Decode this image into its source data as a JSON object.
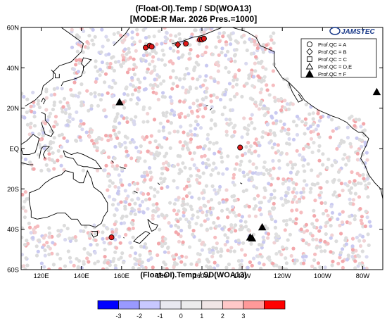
{
  "header": {
    "title_line1": "(Float-OI).Temp / SD(WOA13)",
    "title_line2": "[MODE:R Mar. 2026  Pres.=1000]"
  },
  "logo": {
    "text": "JAMSTEC"
  },
  "map": {
    "lon_range": [
      110,
      290
    ],
    "lat_range": [
      -60,
      60
    ],
    "lat_ticks": [
      {
        "value": 60,
        "label": "60N"
      },
      {
        "value": 40,
        "label": "40N"
      },
      {
        "value": 20,
        "label": "20N"
      },
      {
        "value": 0,
        "label": "EQ"
      },
      {
        "value": -20,
        "label": "20S"
      },
      {
        "value": -40,
        "label": "40S"
      },
      {
        "value": -60,
        "label": "60S"
      }
    ],
    "lon_ticks": [
      {
        "value": 120,
        "label": "120E"
      },
      {
        "value": 140,
        "label": "140E"
      },
      {
        "value": 160,
        "label": "160E"
      },
      {
        "value": 180,
        "label": "180"
      },
      {
        "value": 200,
        "label": "160W"
      },
      {
        "value": 220,
        "label": "140W"
      },
      {
        "value": 240,
        "label": "120W"
      },
      {
        "value": 260,
        "label": "100W"
      },
      {
        "value": 280,
        "label": "80W"
      }
    ],
    "xlabel": "(Float-OI).Temp / SD(WOA13)",
    "float_color_neutral": "#dcdcdc",
    "flagged": [
      {
        "lon": 172,
        "lat": 50,
        "qc": "A"
      },
      {
        "lon": 174,
        "lat": 51,
        "qc": "A"
      },
      {
        "lon": 175,
        "lat": 50.5,
        "qc": "A"
      },
      {
        "lon": 188,
        "lat": 51.5,
        "qc": "B"
      },
      {
        "lon": 192,
        "lat": 52,
        "qc": "A"
      },
      {
        "lon": 199,
        "lat": 54,
        "qc": "A"
      },
      {
        "lon": 200,
        "lat": 54,
        "qc": "A"
      },
      {
        "lon": 201,
        "lat": 54.5,
        "qc": "A"
      },
      {
        "lon": 219,
        "lat": 0.5,
        "qc": "A"
      },
      {
        "lon": 155,
        "lat": -44,
        "qc": "A"
      },
      {
        "lon": 159,
        "lat": 23,
        "qc": "F"
      },
      {
        "lon": 224,
        "lat": -44,
        "qc": "F"
      },
      {
        "lon": 225,
        "lat": -44.5,
        "qc": "F"
      },
      {
        "lon": 230,
        "lat": -39,
        "qc": "F"
      },
      {
        "lon": 287,
        "lat": 28,
        "qc": "F"
      }
    ]
  },
  "legend": {
    "items": [
      {
        "symbol": "circle",
        "label": "Prof.QC = A"
      },
      {
        "symbol": "diamond",
        "label": "Prof.QC = B"
      },
      {
        "symbol": "square",
        "label": "Prof.QC = C"
      },
      {
        "symbol": "triangle-open",
        "label": "Prof.QC = D,E"
      },
      {
        "symbol": "triangle-filled",
        "label": "Prof.QC = F"
      }
    ]
  },
  "colorbar": {
    "ticks": [
      "-3",
      "-2",
      "-1",
      "0",
      "1",
      "2",
      "3"
    ],
    "colors": [
      "#0000ff",
      "#9999ff",
      "#c8c8ff",
      "#e8e8f0",
      "#ececec",
      "#f0e6e6",
      "#ffc8c8",
      "#ff9999",
      "#ff0000"
    ]
  }
}
